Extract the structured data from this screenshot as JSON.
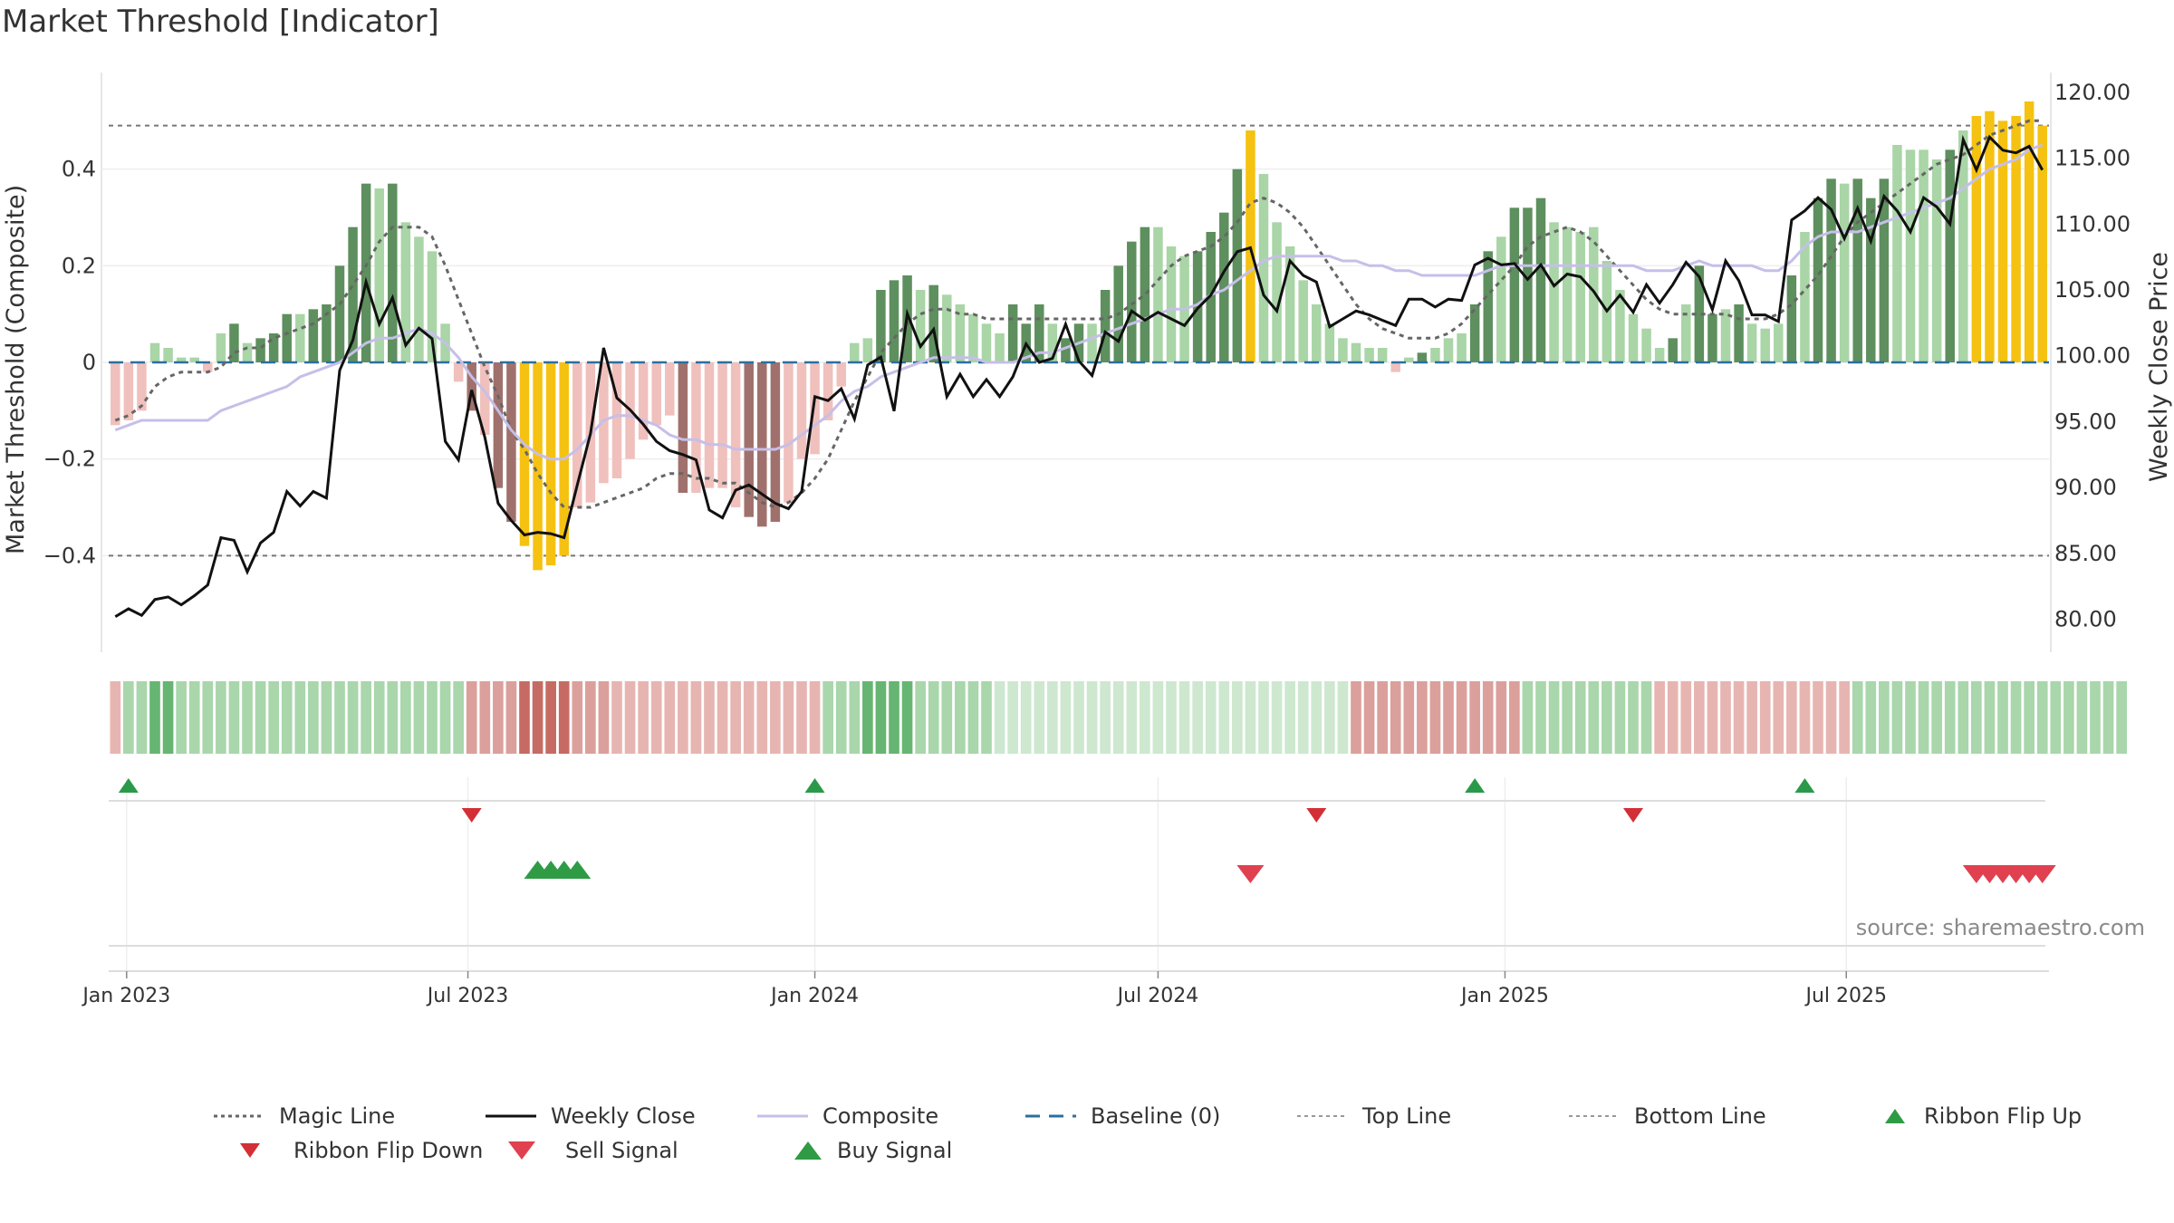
{
  "title": "Market Threshold [Indicator]",
  "y_left_label": "Market Threshold (Composite)",
  "y_right_label": "Weekly Close Price",
  "source": "source: sharemaestro.com",
  "colors": {
    "dark_green": "#5e8f5e",
    "light_green": "#a9d5a7",
    "dark_red": "#a0716c",
    "light_red": "#f0c0bd",
    "extreme": "#f5c211",
    "close_line": "#111111",
    "composite_line": "#c6bfe8",
    "magic_line": "#666666",
    "baseline": "#2b6fa0",
    "flip_up": "#2a9a4a",
    "flip_down": "#d22f37",
    "sell": "#e04050",
    "buy": "#2f9c45"
  },
  "chart_data": {
    "type": "bar",
    "x_axis_ticks": [
      "Jan 2023",
      "Jul 2023",
      "Jan 2024",
      "Jul 2024",
      "Jan 2025",
      "Jul 2025"
    ],
    "y_left_ticks": [
      "0.4",
      "0.2",
      "0",
      "−0.2",
      "−0.4"
    ],
    "y_right_ticks": [
      "120.00",
      "115.00",
      "110.00",
      "105.00",
      "100.00",
      "95.00",
      "90.00",
      "85.00",
      "80.00"
    ],
    "ylim_left": [
      -0.6,
      0.6
    ],
    "ylim_right": [
      77.5,
      121.5
    ],
    "top_line": 0.49,
    "bottom_line": -0.4,
    "baseline": 0,
    "start_date": "2022-12-26",
    "week_count": 147,
    "composite_bars": [
      -0.13,
      -0.12,
      -0.1,
      0.04,
      0.03,
      0.01,
      0.01,
      -0.02,
      0.06,
      0.08,
      0.04,
      0.05,
      0.06,
      0.1,
      0.1,
      0.11,
      0.12,
      0.2,
      0.28,
      0.37,
      0.36,
      0.37,
      0.29,
      0.26,
      0.23,
      0.08,
      -0.04,
      -0.1,
      -0.15,
      -0.26,
      -0.33,
      -0.38,
      -0.43,
      -0.42,
      -0.4,
      -0.3,
      -0.29,
      -0.25,
      -0.24,
      -0.2,
      -0.16,
      -0.13,
      -0.11,
      -0.27,
      -0.27,
      -0.26,
      -0.26,
      -0.3,
      -0.32,
      -0.34,
      -0.33,
      -0.29,
      -0.2,
      -0.19,
      -0.12,
      -0.05,
      0.04,
      0.05,
      0.15,
      0.17,
      0.18,
      0.15,
      0.16,
      0.14,
      0.12,
      0.1,
      0.08,
      0.06,
      0.12,
      0.08,
      0.12,
      0.08,
      0.05,
      0.08,
      0.08,
      0.15,
      0.2,
      0.25,
      0.28,
      0.28,
      0.24,
      0.22,
      0.23,
      0.27,
      0.31,
      0.4,
      0.48,
      0.39,
      0.29,
      0.24,
      0.17,
      0.12,
      0.08,
      0.05,
      0.04,
      0.03,
      0.03,
      -0.02,
      0.01,
      0.02,
      0.03,
      0.05,
      0.06,
      0.12,
      0.23,
      0.26,
      0.32,
      0.32,
      0.34,
      0.29,
      0.28,
      0.27,
      0.28,
      0.21,
      0.15,
      0.1,
      0.07,
      0.03,
      0.05,
      0.12,
      0.2,
      0.1,
      0.11,
      0.12,
      0.08,
      0.07,
      0.08,
      0.18,
      0.27,
      0.34,
      0.38,
      0.37,
      0.38,
      0.34,
      0.38,
      0.45,
      0.44,
      0.44,
      0.42,
      0.44,
      0.48,
      0.51,
      0.52,
      0.5,
      0.51,
      0.54,
      0.49
    ],
    "bar_tone": [
      "lr",
      "lr",
      "lr",
      "lg",
      "lg",
      "lg",
      "lg",
      "lr",
      "lg",
      "dg",
      "lg",
      "dg",
      "dg",
      "dg",
      "lg",
      "dg",
      "dg",
      "dg",
      "dg",
      "dg",
      "lg",
      "dg",
      "lg",
      "lg",
      "lg",
      "lg",
      "lr",
      "dr",
      "lr",
      "dr",
      "dr",
      "y",
      "y",
      "y",
      "y",
      "lr",
      "lr",
      "lr",
      "lr",
      "lr",
      "lr",
      "lr",
      "lr",
      "dr",
      "lr",
      "lr",
      "lr",
      "lr",
      "dr",
      "dr",
      "dr",
      "lr",
      "lr",
      "lr",
      "lr",
      "lr",
      "lg",
      "lg",
      "dg",
      "dg",
      "dg",
      "lg",
      "dg",
      "lg",
      "lg",
      "lg",
      "lg",
      "lg",
      "dg",
      "dg",
      "dg",
      "lg",
      "dg",
      "dg",
      "lg",
      "dg",
      "dg",
      "dg",
      "dg",
      "lg",
      "lg",
      "lg",
      "dg",
      "dg",
      "dg",
      "dg",
      "y",
      "lg",
      "lg",
      "lg",
      "lg",
      "lg",
      "lg",
      "lg",
      "lg",
      "lg",
      "lg",
      "lr",
      "lg",
      "dg",
      "lg",
      "lg",
      "lg",
      "dg",
      "dg",
      "lg",
      "dg",
      "dg",
      "dg",
      "lg",
      "lg",
      "lg",
      "lg",
      "lg",
      "lg",
      "lg",
      "lg",
      "lg",
      "dg",
      "lg",
      "dg",
      "dg",
      "lg",
      "dg",
      "lg",
      "lg",
      "lg",
      "dg",
      "lg",
      "dg",
      "dg",
      "lg",
      "dg",
      "dg",
      "dg",
      "lg",
      "lg",
      "lg",
      "lg",
      "dg",
      "lg",
      "y",
      "y",
      "y",
      "y",
      "y",
      "y",
      "y"
    ],
    "weekly_close": [
      80.2,
      80.8,
      80.3,
      81.5,
      81.7,
      81.1,
      81.8,
      82.6,
      86.2,
      86.0,
      83.6,
      85.8,
      86.6,
      89.7,
      88.6,
      89.7,
      89.2,
      98.9,
      101.2,
      105.6,
      102.4,
      104.4,
      100.8,
      102.1,
      101.3,
      93.5,
      92.1,
      97.4,
      93.8,
      88.8,
      87.5,
      86.4,
      86.6,
      86.5,
      86.2,
      90.2,
      94.1,
      100.6,
      96.8,
      95.9,
      94.8,
      93.5,
      92.8,
      92.5,
      92.1,
      88.3,
      87.7,
      89.8,
      90.2,
      89.5,
      88.8,
      88.4,
      89.7,
      96.9,
      96.6,
      97.5,
      95.2,
      99.3,
      99.9,
      95.8,
      103.2,
      100.7,
      102.0,
      96.9,
      98.6,
      96.9,
      98.2,
      96.9,
      98.4,
      100.9,
      99.5,
      99.8,
      102.4,
      99.6,
      98.5,
      101.8,
      101.1,
      103.4,
      102.7,
      103.3,
      102.8,
      102.3,
      103.6,
      104.6,
      106.4,
      107.9,
      108.2,
      104.6,
      103.4,
      107.2,
      106.1,
      105.6,
      102.2,
      102.8,
      103.4,
      103.1,
      102.7,
      102.3,
      104.3,
      104.3,
      103.7,
      104.3,
      104.2,
      106.9,
      107.4,
      106.9,
      107.0,
      105.8,
      106.9,
      105.3,
      106.2,
      106.0,
      104.9,
      103.4,
      104.6,
      103.3,
      105.4,
      104.0,
      105.4,
      107.1,
      106.0,
      103.5,
      107.2,
      105.7,
      103.1,
      103.1,
      102.6,
      110.3,
      111.0,
      112.0,
      111.1,
      108.9,
      111.2,
      108.7,
      112.1,
      111.0,
      109.4,
      112.0,
      111.3,
      110.0,
      116.4,
      114.1,
      116.6,
      115.6,
      115.4,
      115.9,
      114.1
    ],
    "composite_line": [
      -0.14,
      -0.13,
      -0.12,
      -0.12,
      -0.12,
      -0.12,
      -0.12,
      -0.12,
      -0.1,
      -0.09,
      -0.08,
      -0.07,
      -0.06,
      -0.05,
      -0.03,
      -0.02,
      -0.01,
      0,
      0.02,
      0.04,
      0.05,
      0.05,
      0.06,
      0.07,
      0.06,
      0.04,
      0.01,
      -0.03,
      -0.06,
      -0.1,
      -0.14,
      -0.17,
      -0.19,
      -0.2,
      -0.2,
      -0.18,
      -0.15,
      -0.12,
      -0.11,
      -0.11,
      -0.12,
      -0.13,
      -0.15,
      -0.16,
      -0.16,
      -0.17,
      -0.17,
      -0.18,
      -0.18,
      -0.18,
      -0.18,
      -0.17,
      -0.15,
      -0.13,
      -0.11,
      -0.08,
      -0.06,
      -0.05,
      -0.03,
      -0.02,
      -0.01,
      0,
      0.01,
      0.01,
      0.01,
      0.01,
      0.0,
      0.0,
      0.0,
      0.01,
      0.02,
      0.02,
      0.03,
      0.04,
      0.05,
      0.06,
      0.07,
      0.08,
      0.09,
      0.1,
      0.11,
      0.11,
      0.12,
      0.14,
      0.15,
      0.17,
      0.19,
      0.21,
      0.22,
      0.22,
      0.22,
      0.22,
      0.22,
      0.21,
      0.21,
      0.2,
      0.2,
      0.19,
      0.19,
      0.18,
      0.18,
      0.18,
      0.18,
      0.18,
      0.19,
      0.2,
      0.2,
      0.2,
      0.2,
      0.2,
      0.2,
      0.2,
      0.2,
      0.2,
      0.2,
      0.2,
      0.19,
      0.19,
      0.19,
      0.2,
      0.21,
      0.2,
      0.2,
      0.2,
      0.2,
      0.19,
      0.19,
      0.21,
      0.24,
      0.26,
      0.27,
      0.27,
      0.27,
      0.28,
      0.29,
      0.3,
      0.31,
      0.32,
      0.33,
      0.34,
      0.36,
      0.38,
      0.4,
      0.41,
      0.42,
      0.44,
      0.45
    ],
    "magic_line": [
      -0.12,
      -0.11,
      -0.09,
      -0.05,
      -0.03,
      -0.02,
      -0.02,
      -0.02,
      -0.01,
      0.02,
      0.03,
      0.03,
      0.05,
      0.06,
      0.07,
      0.08,
      0.1,
      0.12,
      0.16,
      0.2,
      0.25,
      0.28,
      0.28,
      0.28,
      0.26,
      0.2,
      0.13,
      0.06,
      -0.01,
      -0.07,
      -0.14,
      -0.18,
      -0.23,
      -0.27,
      -0.3,
      -0.3,
      -0.3,
      -0.29,
      -0.28,
      -0.27,
      -0.26,
      -0.24,
      -0.23,
      -0.23,
      -0.24,
      -0.24,
      -0.25,
      -0.25,
      -0.27,
      -0.29,
      -0.3,
      -0.29,
      -0.27,
      -0.24,
      -0.2,
      -0.14,
      -0.08,
      -0.03,
      0.02,
      0.05,
      0.08,
      0.1,
      0.11,
      0.11,
      0.1,
      0.1,
      0.09,
      0.09,
      0.09,
      0.09,
      0.09,
      0.09,
      0.09,
      0.09,
      0.09,
      0.09,
      0.1,
      0.12,
      0.14,
      0.17,
      0.2,
      0.22,
      0.23,
      0.24,
      0.26,
      0.29,
      0.33,
      0.34,
      0.33,
      0.31,
      0.28,
      0.24,
      0.2,
      0.16,
      0.12,
      0.09,
      0.07,
      0.06,
      0.05,
      0.05,
      0.05,
      0.06,
      0.08,
      0.11,
      0.14,
      0.17,
      0.2,
      0.24,
      0.26,
      0.27,
      0.28,
      0.27,
      0.25,
      0.22,
      0.19,
      0.16,
      0.13,
      0.11,
      0.1,
      0.1,
      0.1,
      0.1,
      0.1,
      0.09,
      0.09,
      0.09,
      0.1,
      0.12,
      0.15,
      0.18,
      0.22,
      0.26,
      0.29,
      0.31,
      0.33,
      0.35,
      0.37,
      0.39,
      0.41,
      0.42,
      0.43,
      0.45,
      0.47,
      0.48,
      0.49,
      0.5,
      0.5
    ],
    "ribbon_shades": [
      1,
      5,
      5,
      6,
      6,
      5,
      5,
      5,
      5,
      5,
      5,
      5,
      5,
      5,
      5,
      5,
      5,
      5,
      5,
      5,
      5,
      5,
      5,
      5,
      5,
      5,
      5,
      3,
      3,
      3,
      3,
      2,
      2,
      2,
      2,
      3,
      3,
      3,
      1,
      1,
      1,
      1,
      1,
      1,
      1,
      1,
      1,
      1,
      1,
      1,
      1,
      1,
      1,
      1,
      5,
      5,
      5,
      6,
      6,
      6,
      6,
      5,
      5,
      5,
      5,
      5,
      5,
      4,
      4,
      4,
      4,
      4,
      4,
      4,
      4,
      4,
      4,
      4,
      4,
      4,
      4,
      4,
      4,
      4,
      4,
      4,
      4,
      4,
      4,
      4,
      4,
      4,
      4,
      4,
      3,
      3,
      3,
      3,
      3,
      3,
      3,
      3,
      3,
      3,
      3,
      3,
      3,
      5,
      5,
      5,
      5,
      5,
      5,
      5,
      5,
      5,
      5,
      1,
      1,
      1,
      1,
      1,
      1,
      1,
      1,
      1,
      1,
      1,
      1,
      1,
      1,
      1,
      5,
      5,
      5,
      5,
      5,
      5,
      5,
      5,
      5,
      5,
      5,
      5,
      5,
      5,
      5,
      5,
      5,
      5,
      5,
      5,
      5
    ],
    "ribbon_flip_up_weeks": [
      1,
      53,
      103,
      128
    ],
    "ribbon_flip_down_weeks": [
      27,
      91,
      115
    ],
    "buy_signal_weeks": [
      32,
      33,
      34,
      35
    ],
    "sell_signal_weeks": [
      86,
      141,
      142,
      143,
      144,
      145,
      146
    ],
    "legend": [
      {
        "label": "Magic Line",
        "style": "dotted-gray"
      },
      {
        "label": "Weekly Close",
        "style": "solid-black"
      },
      {
        "label": "Composite",
        "style": "solid-lavender"
      },
      {
        "label": "Baseline (0)",
        "style": "dashed-blue"
      },
      {
        "label": "Top Line",
        "style": "dotted-light"
      },
      {
        "label": "Bottom Line",
        "style": "dotted-light"
      },
      {
        "label": "Ribbon Flip Up",
        "style": "triangle-up-green"
      },
      {
        "label": "Ribbon Flip Down",
        "style": "triangle-down-red"
      },
      {
        "label": "Sell Signal",
        "style": "triangle-down-red-large"
      },
      {
        "label": "Buy Signal",
        "style": "triangle-up-green-large"
      }
    ]
  }
}
